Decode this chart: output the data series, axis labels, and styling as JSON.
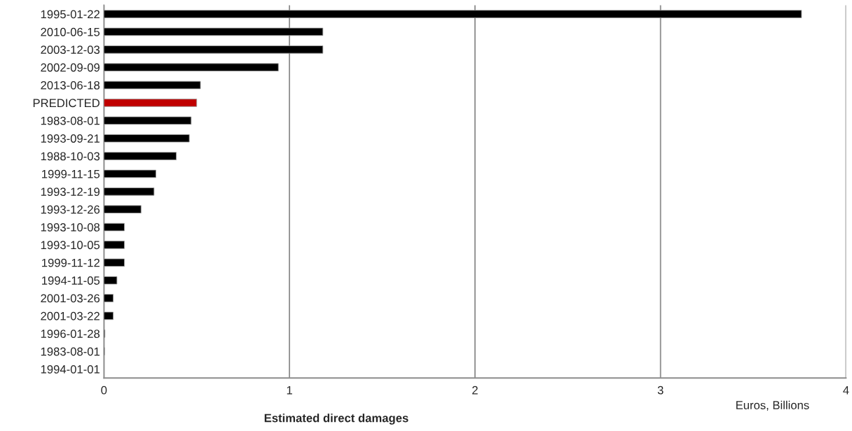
{
  "chart_data": {
    "type": "bar",
    "orientation": "horizontal",
    "xlabel": "Estimated direct damages",
    "annotations": [
      "Euros, Billions"
    ],
    "categories": [
      "1995-01-22",
      "2010-06-15",
      "2003-12-03",
      "2002-09-09",
      "2013-06-18",
      "PREDICTED",
      "1983-08-01",
      "1993-09-21",
      "1988-10-03",
      "1999-11-15",
      "1993-12-19",
      "1993-12-26",
      "1993-10-08",
      "1993-10-05",
      "1999-11-12",
      "1994-11-05",
      "2001-03-26",
      "2001-03-22",
      "1996-01-28",
      "1983-08-01",
      "1994-01-01"
    ],
    "values": [
      3.76,
      1.18,
      1.18,
      0.94,
      0.52,
      0.5,
      0.47,
      0.46,
      0.39,
      0.28,
      0.27,
      0.2,
      0.11,
      0.11,
      0.11,
      0.07,
      0.05,
      0.05,
      0.005,
      0.003,
      null
    ],
    "colors": [
      "#000000",
      "#000000",
      "#000000",
      "#000000",
      "#000000",
      "#c00000",
      "#000000",
      "#000000",
      "#000000",
      "#000000",
      "#000000",
      "#000000",
      "#000000",
      "#000000",
      "#000000",
      "#000000",
      "#000000",
      "#000000",
      "#000000",
      "#000000",
      "#000000"
    ],
    "xlim": [
      0,
      4
    ],
    "xticks": [
      0,
      1,
      2,
      3,
      4
    ],
    "grid": "x",
    "legend": false
  }
}
